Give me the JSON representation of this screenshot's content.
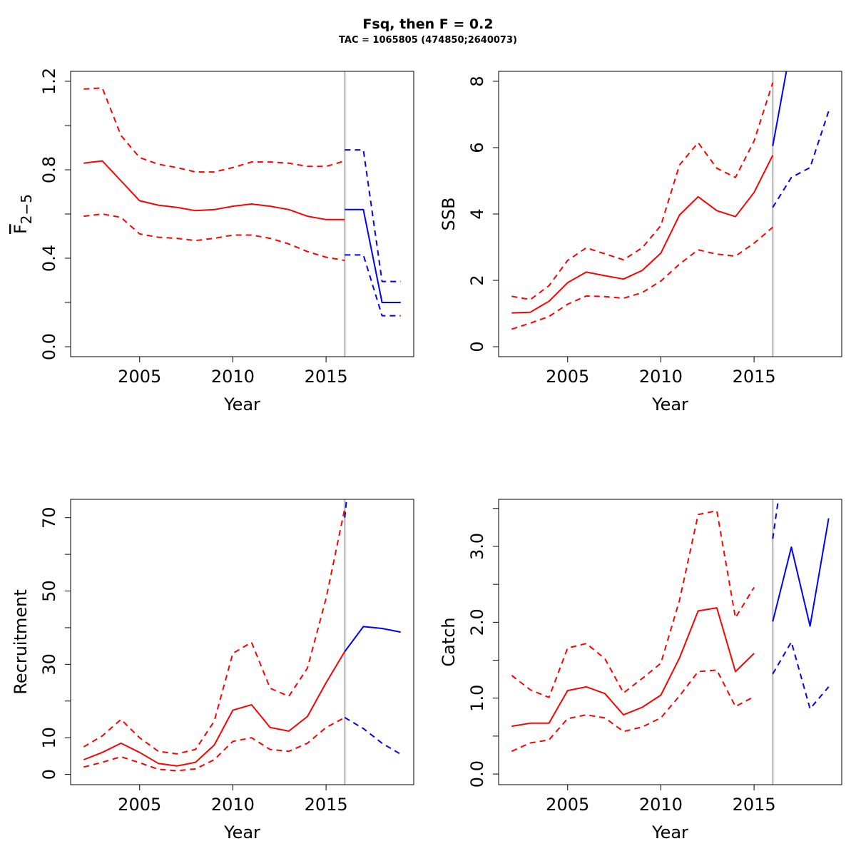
{
  "title": "Fsq, then F = 0.2",
  "subtitle": "TAC = 1065805 (474850;2640073)",
  "colors": {
    "hist": "#ff0000",
    "proj": "#0000ff",
    "ref": "#c0c0c0",
    "axis": "#000000"
  },
  "chart_data": [
    {
      "type": "line",
      "id": "fbar",
      "ylabel_main": "F",
      "ylabel_sub": "2−5",
      "xlabel": "Year",
      "xlim": [
        2001.3,
        2019.7
      ],
      "ylim": [
        -0.045,
        1.245
      ],
      "xticks": [
        2005,
        2010,
        2015
      ],
      "xtick_labels": [
        "2005",
        "2010",
        "2015"
      ],
      "yticks": [
        0.0,
        0.2,
        0.4,
        0.6,
        0.8,
        1.0,
        1.2
      ],
      "ytick_labels": [
        "0.0",
        "",
        "0.4",
        "",
        "0.8",
        "",
        "1.2"
      ],
      "ref_x": 2016,
      "series": [
        {
          "style": "solid",
          "color": "hist",
          "x": [
            2002,
            2003,
            2004,
            2005,
            2006,
            2007,
            2008,
            2009,
            2010,
            2011,
            2012,
            2013,
            2014,
            2015,
            2016
          ],
          "y": [
            0.83,
            0.84,
            0.75,
            0.66,
            0.64,
            0.63,
            0.615,
            0.62,
            0.635,
            0.645,
            0.635,
            0.62,
            0.59,
            0.575,
            0.575
          ]
        },
        {
          "style": "dashed",
          "color": "hist",
          "x": [
            2002,
            2003,
            2004,
            2005,
            2006,
            2007,
            2008,
            2009,
            2010,
            2011,
            2012,
            2013,
            2014,
            2015,
            2016
          ],
          "y": [
            1.165,
            1.17,
            0.955,
            0.855,
            0.825,
            0.81,
            0.79,
            0.79,
            0.81,
            0.835,
            0.835,
            0.83,
            0.815,
            0.815,
            0.84
          ]
        },
        {
          "style": "dashed",
          "color": "hist",
          "x": [
            2002,
            2003,
            2004,
            2005,
            2006,
            2007,
            2008,
            2009,
            2010,
            2011,
            2012,
            2013,
            2014,
            2015,
            2016
          ],
          "y": [
            0.59,
            0.6,
            0.585,
            0.51,
            0.495,
            0.49,
            0.48,
            0.49,
            0.505,
            0.505,
            0.49,
            0.465,
            0.43,
            0.405,
            0.39
          ]
        },
        {
          "style": "solid",
          "color": "proj",
          "x": [
            2016,
            2017,
            2018,
            2019
          ],
          "y": [
            0.62,
            0.62,
            0.2,
            0.2
          ]
        },
        {
          "style": "dashed",
          "color": "proj",
          "x": [
            2016,
            2017,
            2018,
            2019
          ],
          "y": [
            0.89,
            0.89,
            0.295,
            0.295
          ]
        },
        {
          "style": "dashed",
          "color": "proj",
          "x": [
            2016,
            2017,
            2018,
            2019
          ],
          "y": [
            0.415,
            0.415,
            0.14,
            0.14
          ]
        }
      ]
    },
    {
      "type": "line",
      "id": "ssb",
      "ylabel_main": "SSB",
      "xlabel": "Year",
      "xlim": [
        2001.3,
        2019.7
      ],
      "ylim": [
        -0.3,
        8.3
      ],
      "xticks": [
        2005,
        2010,
        2015
      ],
      "xtick_labels": [
        "2005",
        "2010",
        "2015"
      ],
      "yticks": [
        0,
        2,
        4,
        6,
        8
      ],
      "ytick_labels": [
        "0",
        "2",
        "4",
        "6",
        "8"
      ],
      "ref_x": 2016,
      "series": [
        {
          "style": "solid",
          "color": "hist",
          "x": [
            2002,
            2003,
            2004,
            2005,
            2006,
            2007,
            2008,
            2009,
            2010,
            2011,
            2012,
            2013,
            2014,
            2015,
            2016
          ],
          "y": [
            1.02,
            1.04,
            1.37,
            1.93,
            2.25,
            2.14,
            2.04,
            2.3,
            2.82,
            3.97,
            4.52,
            4.1,
            3.92,
            4.65,
            5.77
          ]
        },
        {
          "style": "dashed",
          "color": "hist",
          "x": [
            2002,
            2003,
            2004,
            2005,
            2006,
            2007,
            2008,
            2009,
            2010,
            2011,
            2012,
            2013,
            2014,
            2015,
            2016
          ],
          "y": [
            1.52,
            1.42,
            1.84,
            2.6,
            2.98,
            2.8,
            2.62,
            2.98,
            3.65,
            5.48,
            6.15,
            5.38,
            5.1,
            6.2,
            7.96
          ]
        },
        {
          "style": "dashed",
          "color": "hist",
          "x": [
            2002,
            2003,
            2004,
            2005,
            2006,
            2007,
            2008,
            2009,
            2010,
            2011,
            2012,
            2013,
            2014,
            2015,
            2016
          ],
          "y": [
            0.53,
            0.71,
            0.91,
            1.28,
            1.53,
            1.51,
            1.46,
            1.63,
            1.98,
            2.49,
            2.92,
            2.79,
            2.73,
            3.12,
            3.6
          ]
        },
        {
          "style": "solid",
          "color": "proj",
          "x": [
            2016,
            2016.73
          ],
          "y": [
            6.05,
            8.3
          ]
        },
        {
          "style": "dashed",
          "color": "proj",
          "x": [
            2016,
            2017,
            2018,
            2019
          ],
          "y": [
            4.2,
            5.1,
            5.4,
            7.1
          ]
        }
      ]
    },
    {
      "type": "line",
      "id": "recruitment",
      "ylabel_main": "Recruitment",
      "xlabel": "Year",
      "xlim": [
        2001.3,
        2019.7
      ],
      "ylim": [
        -2.8,
        75.0
      ],
      "xticks": [
        2005,
        2010,
        2015
      ],
      "xtick_labels": [
        "2005",
        "2010",
        "2015"
      ],
      "yticks": [
        0,
        10,
        20,
        30,
        40,
        50,
        60,
        70
      ],
      "ytick_labels": [
        "0",
        "10",
        "",
        "30",
        "",
        "50",
        "",
        "70"
      ],
      "ref_x": 2016,
      "series": [
        {
          "style": "solid",
          "color": "hist",
          "x": [
            2002,
            2003,
            2004,
            2005,
            2006,
            2007,
            2008,
            2009,
            2010,
            2011,
            2012,
            2013,
            2014,
            2015,
            2016
          ],
          "y": [
            4.0,
            6.0,
            8.5,
            6.0,
            3.0,
            2.3,
            3.3,
            8.0,
            17.5,
            19.0,
            12.8,
            11.8,
            15.8,
            25.0,
            33.5
          ]
        },
        {
          "style": "dashed",
          "color": "hist",
          "x": [
            2002,
            2003,
            2004,
            2005,
            2006,
            2007,
            2008,
            2009,
            2010,
            2011,
            2012,
            2013,
            2014,
            2015,
            2016
          ],
          "y": [
            7.5,
            10.5,
            15.0,
            10.0,
            6.3,
            5.6,
            6.8,
            14.5,
            33.0,
            36.0,
            23.5,
            21.3,
            29.0,
            48.0,
            72.5
          ]
        },
        {
          "style": "dashed",
          "color": "hist",
          "x": [
            2002,
            2003,
            2004,
            2005,
            2006,
            2007,
            2008,
            2009,
            2010,
            2011,
            2012,
            2013,
            2014,
            2015,
            2016
          ],
          "y": [
            2.0,
            3.3,
            4.8,
            3.2,
            1.4,
            1.0,
            1.5,
            4.0,
            9.0,
            10.0,
            6.8,
            6.3,
            8.5,
            12.8,
            15.5
          ]
        },
        {
          "style": "solid",
          "color": "proj",
          "x": [
            2016,
            2017,
            2018,
            2019
          ],
          "y": [
            33.5,
            40.3,
            39.8,
            38.8
          ]
        },
        {
          "style": "dashed",
          "color": "proj",
          "x": [
            2016,
            2016.1
          ],
          "y": [
            70.0,
            75.0
          ]
        },
        {
          "style": "dashed",
          "color": "proj",
          "x": [
            2016,
            2017,
            2018,
            2019
          ],
          "y": [
            15.5,
            12.5,
            8.5,
            5.5
          ]
        }
      ]
    },
    {
      "type": "line",
      "id": "catch",
      "ylabel_main": "Catch",
      "xlabel": "Year",
      "xlim": [
        2001.3,
        2019.7
      ],
      "ylim": [
        -0.14,
        3.62
      ],
      "xticks": [
        2005,
        2010,
        2015
      ],
      "xtick_labels": [
        "2005",
        "2010",
        "2015"
      ],
      "yticks": [
        0.0,
        0.5,
        1.0,
        1.5,
        2.0,
        2.5,
        3.0,
        3.5
      ],
      "ytick_labels": [
        "0.0",
        "",
        "1.0",
        "",
        "2.0",
        "",
        "3.0",
        ""
      ],
      "ref_x": 2016,
      "series": [
        {
          "style": "solid",
          "color": "hist",
          "x": [
            2002,
            2003,
            2004,
            2005,
            2006,
            2007,
            2008,
            2009,
            2010,
            2011,
            2012,
            2013,
            2014,
            2015
          ],
          "y": [
            0.63,
            0.67,
            0.67,
            1.1,
            1.15,
            1.06,
            0.78,
            0.88,
            1.04,
            1.53,
            2.15,
            2.19,
            1.35,
            1.59
          ]
        },
        {
          "style": "dashed",
          "color": "hist",
          "x": [
            2002,
            2003,
            2004,
            2005,
            2006,
            2007,
            2008,
            2009,
            2010,
            2011,
            2012,
            2013,
            2014,
            2015
          ],
          "y": [
            1.3,
            1.11,
            1.01,
            1.66,
            1.72,
            1.52,
            1.07,
            1.26,
            1.46,
            2.29,
            3.42,
            3.47,
            2.06,
            2.46
          ]
        },
        {
          "style": "dashed",
          "color": "hist",
          "x": [
            2002,
            2003,
            2004,
            2005,
            2006,
            2007,
            2008,
            2009,
            2010,
            2011,
            2012,
            2013,
            2014,
            2015
          ],
          "y": [
            0.3,
            0.41,
            0.45,
            0.73,
            0.78,
            0.74,
            0.56,
            0.62,
            0.74,
            1.03,
            1.35,
            1.37,
            0.89,
            1.02
          ]
        },
        {
          "style": "solid",
          "color": "proj",
          "x": [
            2016,
            2017,
            2018,
            2019
          ],
          "y": [
            2.01,
            2.99,
            1.95,
            3.37
          ]
        },
        {
          "style": "dashed",
          "color": "proj",
          "x": [
            2016,
            2016.3
          ],
          "y": [
            3.1,
            3.62
          ]
        },
        {
          "style": "dashed",
          "color": "proj",
          "x": [
            2016,
            2017,
            2018,
            2019
          ],
          "y": [
            1.32,
            1.74,
            0.86,
            1.15
          ]
        }
      ]
    }
  ]
}
